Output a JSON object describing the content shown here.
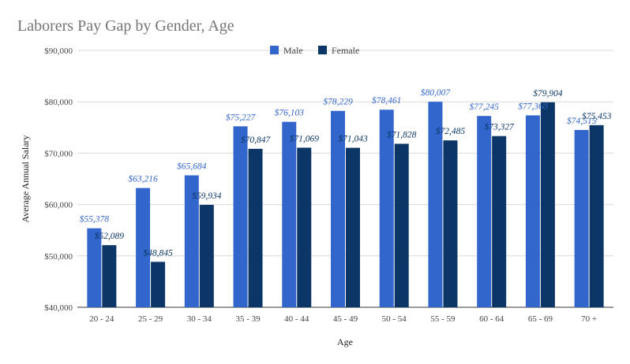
{
  "chart_data": {
    "type": "bar",
    "title": "Laborers Pay Gap by Gender, Age",
    "xlabel": "Age",
    "ylabel": "Average Annual Salary",
    "categories": [
      "20 - 24",
      "25 - 29",
      "30 - 34",
      "35 - 39",
      "40 - 44",
      "45 - 49",
      "50 - 54",
      "55 - 59",
      "60 - 64",
      "65 - 69",
      "70 +"
    ],
    "series": [
      {
        "name": "Male",
        "color": "#3366cc",
        "values": [
          55378,
          63216,
          65684,
          75227,
          76103,
          78229,
          78461,
          80007,
          77245,
          77360,
          74515
        ],
        "labels": [
          "$55,378",
          "$63,216",
          "$65,684",
          "$75,227",
          "$76,103",
          "$78,229",
          "$78,461",
          "$80,007",
          "$77,245",
          "$77,360",
          "$74,515"
        ]
      },
      {
        "name": "Female",
        "color": "#0b3665",
        "values": [
          52089,
          48845,
          59934,
          70847,
          71069,
          71043,
          71828,
          72485,
          73327,
          79904,
          75453
        ],
        "labels": [
          "$52,089",
          "$48,845",
          "$59,934",
          "$70,847",
          "$71,069",
          "$71,043",
          "$71,828",
          "$72,485",
          "$73,327",
          "$79,904",
          "$75,453"
        ]
      }
    ],
    "ylim": [
      40000,
      90000
    ],
    "yticks": [
      40000,
      50000,
      60000,
      70000,
      80000,
      90000
    ],
    "ytick_labels": [
      "$40,000",
      "$50,000",
      "$60,000",
      "$70,000",
      "$80,000",
      "$90,000"
    ],
    "legend_position": "top-center",
    "grid": true
  }
}
